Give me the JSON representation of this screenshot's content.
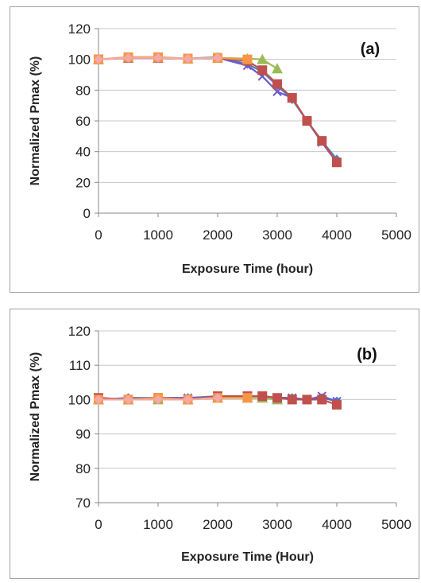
{
  "chart_data": [
    {
      "type": "line",
      "panel_label": "(a)",
      "xlabel": "Exposure Time (hour)",
      "ylabel": "Normalized Pmax (%)",
      "xlim": [
        0,
        5000
      ],
      "ylim": [
        0,
        120
      ],
      "xticks": [
        0,
        1000,
        2000,
        3000,
        4000,
        5000
      ],
      "yticks": [
        0,
        20,
        40,
        60,
        80,
        100,
        120
      ],
      "grid": "horizontal",
      "series": [
        {
          "color": "#4f81bd",
          "marker": "diamond",
          "x": [
            0,
            500,
            1000,
            1500,
            2000,
            2500,
            2750,
            3000,
            3250,
            3500,
            3750,
            4000
          ],
          "y": [
            100,
            101,
            101,
            100.5,
            101.5,
            97,
            92,
            83,
            74,
            60,
            47,
            35
          ]
        },
        {
          "color": "#6a5acd",
          "marker": "x",
          "x": [
            0,
            500,
            1000,
            1500,
            2000,
            2500,
            2750,
            3000,
            3250,
            3500,
            3750,
            4000
          ],
          "y": [
            100,
            101,
            101,
            100.5,
            101,
            96,
            89,
            79,
            75,
            60,
            46,
            33
          ]
        },
        {
          "color": "#9bbb59",
          "marker": "triangle",
          "x": [
            0,
            500,
            1000,
            1500,
            2000,
            2500,
            2750,
            3000
          ],
          "y": [
            100,
            101,
            101,
            100.5,
            101,
            100.5,
            100,
            94
          ]
        },
        {
          "color": "#c0504d",
          "marker": "square",
          "x": [
            0,
            500,
            1000,
            1500,
            2000,
            2500,
            2750,
            3000,
            3250,
            3500,
            3750,
            4000
          ],
          "y": [
            100,
            101,
            101,
            100.5,
            101,
            99,
            93,
            84,
            75,
            60,
            47,
            33
          ]
        },
        {
          "color": "#f79646",
          "marker": "square",
          "x": [
            0,
            500,
            1000,
            1500,
            2000,
            2500
          ],
          "y": [
            100,
            101.5,
            101.5,
            100.5,
            101,
            100
          ]
        },
        {
          "color": "#f4a9a8",
          "marker": "diamond",
          "x": [
            0,
            500,
            1000,
            1500,
            2000
          ],
          "y": [
            100,
            101,
            101,
            100.5,
            101
          ]
        }
      ]
    },
    {
      "type": "line",
      "panel_label": "(b)",
      "xlabel": "Exposure Time (Hour)",
      "ylabel": "Normalized Pmax (%)",
      "xlim": [
        0,
        5000
      ],
      "ylim": [
        70,
        120
      ],
      "xticks": [
        0,
        1000,
        2000,
        3000,
        4000,
        5000
      ],
      "yticks": [
        70,
        80,
        90,
        100,
        110,
        120
      ],
      "grid": "horizontal",
      "series": [
        {
          "color": "#4f81bd",
          "marker": "diamond",
          "x": [
            0,
            500,
            1000,
            1500,
            2000,
            2500,
            2750,
            3000,
            3250,
            3500,
            3750,
            4000
          ],
          "y": [
            100,
            100.5,
            100.5,
            100.5,
            101,
            101,
            101,
            100.5,
            100.5,
            100,
            100.5,
            99.5
          ]
        },
        {
          "color": "#6a5acd",
          "marker": "x",
          "x": [
            0,
            500,
            1000,
            1500,
            2000,
            2500,
            2750,
            3000,
            3250,
            3500,
            3750,
            4000
          ],
          "y": [
            100,
            100,
            100.5,
            100.5,
            100.5,
            101,
            101,
            100.5,
            100.5,
            100,
            101,
            99.5
          ]
        },
        {
          "color": "#9bbb59",
          "marker": "triangle",
          "x": [
            0,
            500,
            1000,
            1500,
            2000,
            2500,
            2750,
            3000
          ],
          "y": [
            100,
            100,
            100,
            100,
            100.5,
            100.5,
            100.5,
            100
          ]
        },
        {
          "color": "#c0504d",
          "marker": "square",
          "x": [
            0,
            500,
            1000,
            1500,
            2000,
            2500,
            2750,
            3000,
            3250,
            3500,
            3750,
            4000
          ],
          "y": [
            100.5,
            100,
            100.5,
            100,
            101,
            101,
            101,
            100.5,
            100,
            100,
            100,
            98.5
          ]
        },
        {
          "color": "#f79646",
          "marker": "square",
          "x": [
            0,
            500,
            1000,
            1500,
            2000,
            2500
          ],
          "y": [
            100,
            100,
            100.5,
            100,
            100.5,
            100.5
          ]
        },
        {
          "color": "#f4a9a8",
          "marker": "diamond",
          "x": [
            0,
            500,
            1000,
            1500,
            2000
          ],
          "y": [
            100,
            100,
            100,
            100,
            100.5
          ]
        }
      ]
    }
  ]
}
